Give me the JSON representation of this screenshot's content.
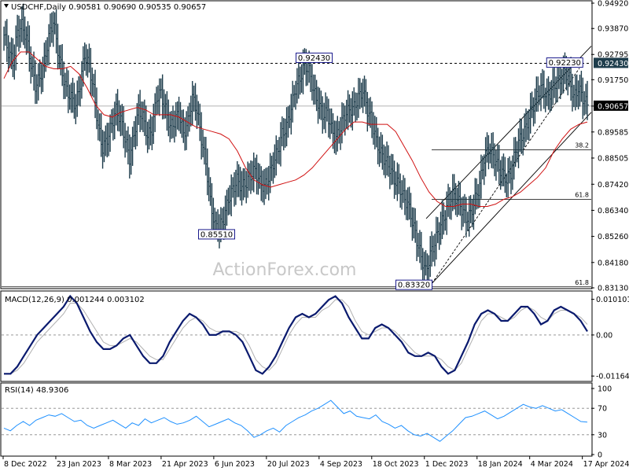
{
  "chart_data": {
    "type": "line",
    "instrument": "USDCHF",
    "period": "Daily",
    "ohlc_header": "USDCHF,Daily  0.90581 0.90690 0.90535 0.90657",
    "watermark": "ActionForex.com",
    "price_axis_ticks": [
      "0.94920",
      "0.93870",
      "0.92795",
      "0.91750",
      "0.90657",
      "0.89585",
      "0.88505",
      "0.87420",
      "0.86340",
      "0.85260",
      "0.84180",
      "0.83130"
    ],
    "price_axis_values": [
      0.9492,
      0.9387,
      0.92795,
      0.9175,
      0.90657,
      0.89585,
      0.88505,
      0.8742,
      0.8634,
      0.8526,
      0.8418,
      0.8313
    ],
    "price_range": [
      0.8313,
      0.9492
    ],
    "current_price": {
      "label": "0.90657",
      "value": 0.90657
    },
    "resistance_label": {
      "label": "0.92430",
      "value": 0.9243
    },
    "x_axis_labels": [
      "8 Dec 2022",
      "23 Jan 2023",
      "8 Mar 2023",
      "21 Apr 2023",
      "6 Jun 2023",
      "20 Jul 2023",
      "4 Sep 2023",
      "18 Oct 2023",
      "1 Dec 2023",
      "18 Jan 2024",
      "4 Mar 2024",
      "17 Apr 2024"
    ],
    "price_series": [
      0.936,
      0.929,
      0.925,
      0.937,
      0.94,
      0.935,
      0.924,
      0.915,
      0.918,
      0.925,
      0.935,
      0.942,
      0.93,
      0.92,
      0.913,
      0.91,
      0.907,
      0.916,
      0.928,
      0.923,
      0.913,
      0.898,
      0.889,
      0.893,
      0.899,
      0.905,
      0.901,
      0.893,
      0.885,
      0.895,
      0.905,
      0.902,
      0.894,
      0.897,
      0.91,
      0.912,
      0.905,
      0.898,
      0.9,
      0.904,
      0.895,
      0.9,
      0.91,
      0.905,
      0.893,
      0.883,
      0.867,
      0.857,
      0.856,
      0.86,
      0.868,
      0.872,
      0.876,
      0.873,
      0.875,
      0.878,
      0.88,
      0.875,
      0.873,
      0.877,
      0.883,
      0.888,
      0.895,
      0.898,
      0.906,
      0.914,
      0.918,
      0.924,
      0.921,
      0.913,
      0.908,
      0.903,
      0.904,
      0.897,
      0.893,
      0.898,
      0.903,
      0.905,
      0.906,
      0.91,
      0.913,
      0.905,
      0.9,
      0.892,
      0.887,
      0.884,
      0.881,
      0.876,
      0.874,
      0.869,
      0.866,
      0.859,
      0.851,
      0.844,
      0.838,
      0.845,
      0.85,
      0.856,
      0.86,
      0.866,
      0.87,
      0.868,
      0.864,
      0.86,
      0.862,
      0.868,
      0.874,
      0.885,
      0.889,
      0.886,
      0.882,
      0.879,
      0.876,
      0.879,
      0.888,
      0.893,
      0.896,
      0.902,
      0.907,
      0.912,
      0.914,
      0.91,
      0.913,
      0.916,
      0.918,
      0.921,
      0.918,
      0.91,
      0.914,
      0.91,
      0.907
    ],
    "moving_average_series": [
      0.918,
      0.925,
      0.929,
      0.929,
      0.926,
      0.923,
      0.922,
      0.922,
      0.923,
      0.92,
      0.914,
      0.907,
      0.903,
      0.902,
      0.904,
      0.905,
      0.906,
      0.905,
      0.903,
      0.903,
      0.903,
      0.902,
      0.9,
      0.898,
      0.897,
      0.896,
      0.895,
      0.893,
      0.888,
      0.881,
      0.876,
      0.874,
      0.873,
      0.874,
      0.875,
      0.876,
      0.878,
      0.881,
      0.885,
      0.889,
      0.893,
      0.897,
      0.9,
      0.9,
      0.899,
      0.899,
      0.899,
      0.896,
      0.89,
      0.884,
      0.877,
      0.871,
      0.867,
      0.865,
      0.865,
      0.866,
      0.866,
      0.865,
      0.865,
      0.866,
      0.868,
      0.869,
      0.871,
      0.874,
      0.877,
      0.881,
      0.888,
      0.893,
      0.897,
      0.899,
      0.9
    ],
    "annotations": [
      {
        "label": "0.92430",
        "value": 0.9243,
        "type": "swing_high",
        "at_fraction": 0.53
      },
      {
        "label": "0.85510",
        "value": 0.8551,
        "type": "swing_low",
        "at_fraction": 0.39
      },
      {
        "label": "0.83320",
        "value": 0.8332,
        "type": "swing_low",
        "at_fraction": 0.73
      },
      {
        "label": "0.92230",
        "value": 0.9223,
        "type": "swing_high",
        "at_fraction": 0.955
      }
    ],
    "fibonacci_levels": [
      {
        "label": "38.2",
        "value": 0.8885
      },
      {
        "label": "61.8",
        "value": 0.8679
      },
      {
        "label": "61.8",
        "value": 0.8317
      }
    ],
    "channel_lines": [
      {
        "type": "upper",
        "from_fraction": 0.72,
        "to_fraction": 1.0,
        "from_value": 0.86,
        "to_value": 0.9314
      },
      {
        "type": "lower",
        "from_fraction": 0.73,
        "to_fraction": 1.0,
        "from_value": 0.8332,
        "to_value": 0.904
      },
      {
        "type": "dashed_mid",
        "from_fraction": 0.73,
        "to_fraction": 0.98,
        "from_value": 0.8332,
        "to_value": 0.9223
      }
    ],
    "macd": {
      "label": "MACD(12,26,9) 0.001244 0.003102",
      "axis_ticks": [
        "0.010101",
        "0.00",
        "-0.011645"
      ],
      "axis_values": [
        0.010101,
        0.0,
        -0.011645
      ],
      "range": [
        -0.0125,
        0.0118
      ],
      "macd_series": [
        -0.011,
        -0.011,
        -0.009,
        -0.006,
        -0.003,
        0.0,
        0.002,
        0.004,
        0.006,
        0.008,
        0.011,
        0.009,
        0.005,
        0.001,
        -0.002,
        -0.004,
        -0.004,
        -0.003,
        -0.001,
        0.0,
        -0.003,
        -0.006,
        -0.008,
        -0.008,
        -0.006,
        -0.002,
        0.001,
        0.004,
        0.006,
        0.005,
        0.003,
        0.0,
        0.0,
        0.001,
        0.001,
        0.0,
        -0.002,
        -0.006,
        -0.01,
        -0.011,
        -0.009,
        -0.006,
        -0.002,
        0.002,
        0.005,
        0.006,
        0.005,
        0.006,
        0.008,
        0.01,
        0.011,
        0.009,
        0.005,
        0.002,
        -0.001,
        -0.001,
        0.002,
        0.003,
        0.002,
        0.0,
        -0.002,
        -0.005,
        -0.006,
        -0.006,
        -0.005,
        -0.006,
        -0.009,
        -0.011,
        -0.01,
        -0.006,
        -0.002,
        0.003,
        0.006,
        0.007,
        0.006,
        0.004,
        0.004,
        0.006,
        0.008,
        0.008,
        0.006,
        0.003,
        0.004,
        0.007,
        0.008,
        0.007,
        0.006,
        0.004,
        0.001
      ],
      "signal_series": [
        -0.011,
        -0.011,
        -0.01,
        -0.008,
        -0.005,
        -0.002,
        0.0,
        0.002,
        0.004,
        0.006,
        0.009,
        0.009,
        0.007,
        0.004,
        0.001,
        -0.002,
        -0.003,
        -0.003,
        -0.002,
        -0.001,
        -0.002,
        -0.004,
        -0.006,
        -0.007,
        -0.007,
        -0.004,
        -0.001,
        0.002,
        0.004,
        0.005,
        0.004,
        0.002,
        0.001,
        0.001,
        0.001,
        0.001,
        0.0,
        -0.003,
        -0.007,
        -0.009,
        -0.01,
        -0.008,
        -0.004,
        0.0,
        0.003,
        0.005,
        0.005,
        0.005,
        0.007,
        0.008,
        0.01,
        0.01,
        0.008,
        0.004,
        0.001,
        0.0,
        0.001,
        0.002,
        0.002,
        0.001,
        -0.001,
        -0.003,
        -0.005,
        -0.006,
        -0.006,
        -0.006,
        -0.007,
        -0.009,
        -0.01,
        -0.008,
        -0.004,
        0.0,
        0.004,
        0.006,
        0.006,
        0.005,
        0.004,
        0.005,
        0.007,
        0.008,
        0.007,
        0.005,
        0.004,
        0.006,
        0.007,
        0.007,
        0.006,
        0.005,
        0.003
      ]
    },
    "rsi": {
      "label": "RSI(14) 48.9306",
      "axis_ticks": [
        "100",
        "70",
        "30",
        "0"
      ],
      "axis_values": [
        100,
        70,
        30,
        0
      ],
      "range": [
        0,
        100
      ],
      "series": [
        40,
        36,
        44,
        50,
        44,
        52,
        56,
        60,
        58,
        62,
        56,
        50,
        52,
        44,
        40,
        44,
        48,
        52,
        46,
        40,
        48,
        44,
        54,
        48,
        52,
        56,
        50,
        46,
        48,
        52,
        58,
        50,
        42,
        46,
        50,
        54,
        48,
        44,
        36,
        26,
        30,
        36,
        40,
        34,
        44,
        50,
        56,
        60,
        66,
        70,
        76,
        82,
        72,
        62,
        66,
        58,
        56,
        54,
        60,
        50,
        46,
        40,
        44,
        36,
        30,
        28,
        32,
        26,
        20,
        28,
        36,
        46,
        56,
        58,
        62,
        66,
        60,
        54,
        58,
        64,
        70,
        76,
        72,
        70,
        74,
        70,
        66,
        68,
        62,
        56,
        50,
        49
      ]
    }
  }
}
